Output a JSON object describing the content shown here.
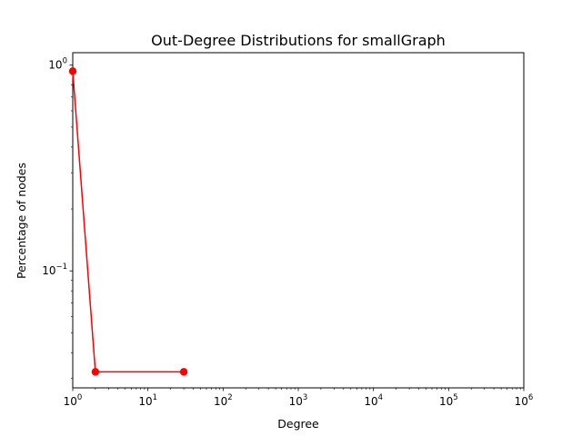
{
  "chart_data": {
    "type": "line",
    "title": "Out-Degree Distributions for smallGraph",
    "xlabel": "Degree",
    "ylabel": "Percentage of nodes",
    "xscale": "log",
    "yscale": "log",
    "xlim": [
      1,
      1000000
    ],
    "ylim": [
      0.027,
      1.15
    ],
    "grid": false,
    "x_ticks": [
      {
        "value": 1,
        "base": "10",
        "exp": "0"
      },
      {
        "value": 10,
        "base": "10",
        "exp": "1"
      },
      {
        "value": 100,
        "base": "10",
        "exp": "2"
      },
      {
        "value": 1000,
        "base": "10",
        "exp": "3"
      },
      {
        "value": 10000,
        "base": "10",
        "exp": "4"
      },
      {
        "value": 100000,
        "base": "10",
        "exp": "5"
      },
      {
        "value": 1000000,
        "base": "10",
        "exp": "6"
      }
    ],
    "y_ticks": [
      {
        "value": 0.1,
        "base": "10",
        "exp": "−1"
      },
      {
        "value": 1,
        "base": "10",
        "exp": "0"
      }
    ],
    "series": [
      {
        "color": "#ff0000",
        "marker": "circle",
        "x": [
          1,
          2,
          30
        ],
        "y": [
          0.9355,
          0.0323,
          0.0323
        ]
      }
    ]
  }
}
